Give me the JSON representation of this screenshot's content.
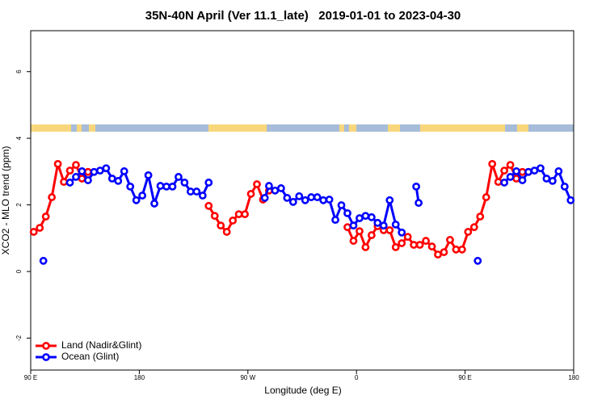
{
  "chart_data": {
    "type": "line",
    "title": "35N-40N April (Ver 11.1_late)   2019-01-01 to 2023-04-30",
    "x_label": "Longitude (deg E)",
    "y_label": "XCO2 - MLO trend (ppm)",
    "xlim": [
      90,
      540
    ],
    "xticks": [
      {
        "value": 90,
        "label": "90 E"
      },
      180,
      {
        "value": 270,
        "label": "90 W"
      },
      {
        "value": 360,
        "label": "0"
      },
      {
        "value": 450,
        "label": "90 E"
      },
      {
        "value": 540,
        "label": "180"
      }
    ],
    "ylim": [
      -2.96,
      7.23
    ],
    "yticks": [
      -2,
      0,
      2,
      4,
      6
    ],
    "legend": "bottom-left",
    "series": [
      {
        "name": "Land (Nadir&Glint)",
        "color": "#ff0000",
        "x": [
          92.5,
          97.5,
          102.5,
          107.5,
          112.5,
          117.5,
          122.5,
          127.5,
          132.5,
          137.5,
          null,
          237.5,
          242.5,
          247.5,
          252.5,
          257.5,
          262.5,
          267.5,
          272.5,
          277.5,
          282.5,
          287.5,
          null,
          352.5,
          357.5,
          362.5,
          367.5,
          372.5,
          377.5,
          382.5,
          387.5,
          392.5,
          397.5,
          402.5,
          407.5,
          412.5,
          417.5,
          422.5,
          427.5,
          432.5,
          437.5,
          442.5,
          447.5,
          452.5,
          457.5,
          462.5,
          467.5,
          472.5,
          477.5,
          482.5,
          487.5,
          492.5,
          497.5,
          502.5
        ],
        "values": [
          1.19,
          1.31,
          1.65,
          2.23,
          3.23,
          2.69,
          3.03,
          3.2,
          2.79,
          2.99,
          null,
          1.97,
          1.67,
          1.38,
          1.19,
          1.53,
          1.72,
          1.72,
          2.33,
          2.62,
          2.16,
          2.43,
          null,
          1.33,
          0.92,
          1.21,
          0.73,
          1.09,
          1.36,
          1.24,
          1.24,
          0.73,
          0.85,
          1.04,
          0.8,
          0.8,
          0.92,
          0.75,
          0.51,
          0.58,
          0.95,
          0.66,
          0.66,
          1.19,
          1.33,
          1.65,
          2.23,
          3.23,
          2.69,
          3.03,
          3.2,
          2.79,
          2.99,
          2.99
        ]
      },
      {
        "name": "Ocean (Glint)",
        "color": "#0000ff",
        "x": [
          100.5,
          null,
          122.5,
          127.5,
          132.5,
          137.5,
          142.5,
          147.5,
          152.5,
          157.5,
          162.5,
          167.5,
          172.5,
          177.5,
          182.5,
          187.5,
          192.5,
          197.5,
          202.5,
          207.5,
          212.5,
          217.5,
          222.5,
          227.5,
          232.5,
          237.5,
          null,
          284,
          287.5,
          292.5,
          297.5,
          302.5,
          307.5,
          312.5,
          317.5,
          322.5,
          327.5,
          332.5,
          337.5,
          342.5,
          347.5,
          352.5,
          357.5,
          362.5,
          367.5,
          372.5,
          377.5,
          382.5,
          387.5,
          392.5,
          397.5,
          null,
          409.5,
          411.5,
          null,
          460.5,
          null,
          482.5,
          487.5,
          492.5,
          497.5,
          502.5,
          507.5,
          512.5,
          517.5,
          522.5,
          527.5,
          532.5,
          537.5
        ],
        "values": [
          0.32,
          null,
          2.67,
          2.84,
          3.01,
          2.74,
          2.99,
          3.03,
          3.1,
          2.79,
          2.72,
          3.01,
          2.55,
          2.14,
          2.28,
          2.89,
          2.04,
          2.57,
          2.55,
          2.55,
          2.84,
          2.67,
          2.4,
          2.4,
          2.28,
          2.67,
          null,
          2.21,
          2.57,
          2.43,
          2.5,
          2.21,
          2.09,
          2.26,
          2.14,
          2.23,
          2.23,
          2.14,
          2.16,
          1.55,
          1.99,
          1.75,
          1.38,
          1.6,
          1.67,
          1.63,
          1.46,
          1.38,
          2.14,
          1.41,
          1.17,
          null,
          2.55,
          2.06,
          null,
          0.32,
          null,
          2.67,
          2.84,
          3.01,
          2.74,
          2.99,
          3.03,
          3.1,
          2.79,
          2.72,
          3.01,
          2.55,
          2.14
        ]
      }
    ]
  }
}
